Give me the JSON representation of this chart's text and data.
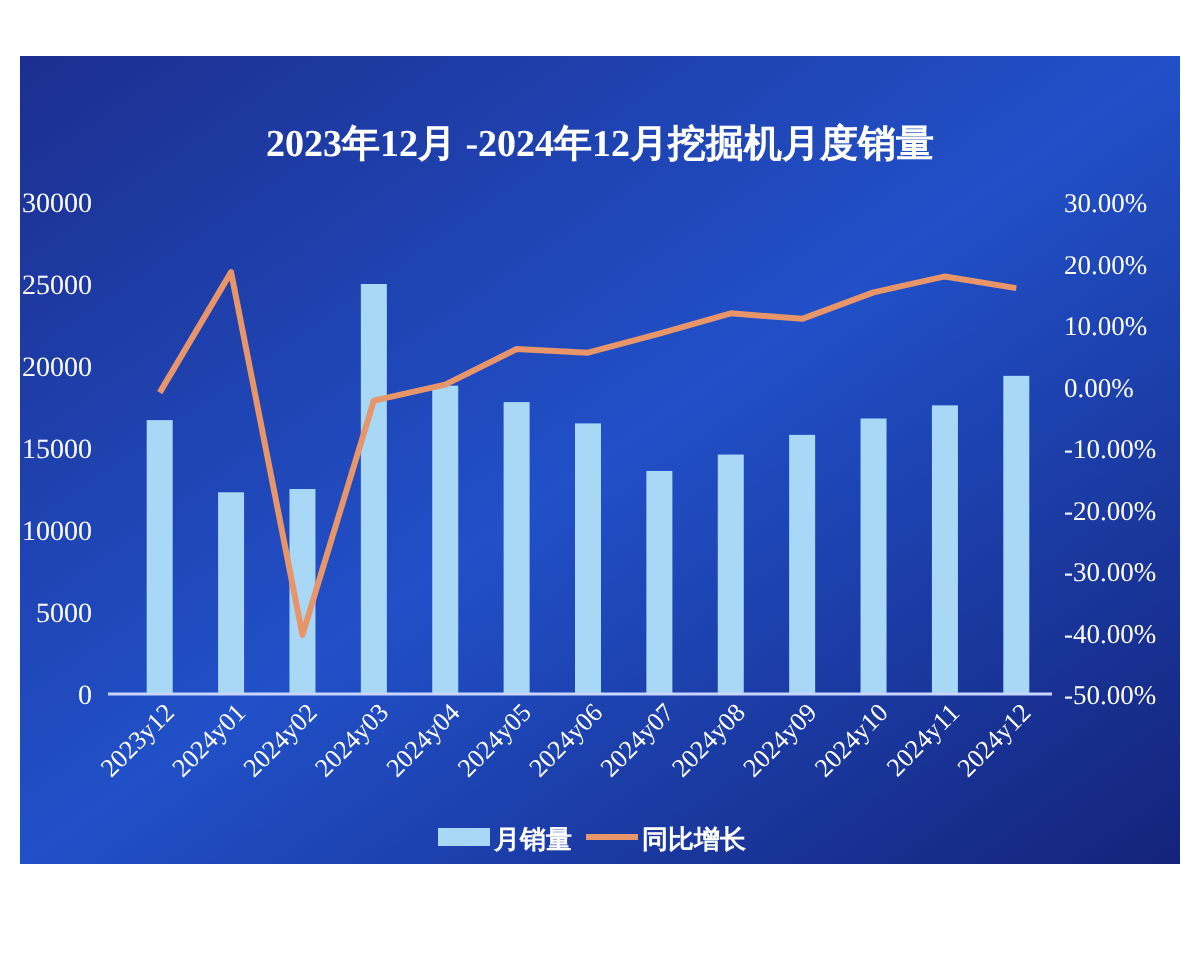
{
  "chart_data": {
    "type": "bar",
    "title": "2023年12月 -2024年12月挖掘机月度销量",
    "categories": [
      "2023y12",
      "2024y01",
      "2024y02",
      "2024y03",
      "2024y04",
      "2024y05",
      "2024y06",
      "2024y07",
      "2024y08",
      "2024y09",
      "2024y10",
      "2024y11",
      "2024y12"
    ],
    "series": [
      {
        "name": "月销量",
        "color": "#a8d8f5",
        "values": [
          16700,
          12300,
          12500,
          25000,
          18800,
          17800,
          16500,
          13600,
          14600,
          15800,
          16800,
          17600,
          19400
        ]
      },
      {
        "name": "同比增长",
        "type": "line",
        "axis": "y2",
        "color": "#e8956a",
        "values": [
          -1.0,
          18.6,
          -40.4,
          -2.3,
          0.3,
          6.1,
          5.5,
          8.6,
          11.9,
          11.0,
          15.3,
          17.9,
          16.0
        ]
      }
    ],
    "ylim": [
      0,
      30000
    ],
    "yticks": [
      0,
      5000,
      10000,
      15000,
      20000,
      25000,
      30000
    ],
    "y2lim": [
      -50,
      30
    ],
    "y2ticks": [
      {
        "value": -50,
        "label": "-50.00%"
      },
      {
        "value": -40,
        "label": "-40.00%"
      },
      {
        "value": -30,
        "label": "-30.00%"
      },
      {
        "value": -20,
        "label": "-20.00%"
      },
      {
        "value": -10,
        "label": "-10.00%"
      },
      {
        "value": 0,
        "label": "0.00%"
      },
      {
        "value": 10,
        "label": "10.00%"
      },
      {
        "value": 20,
        "label": "20.00%"
      },
      {
        "value": 30,
        "label": "30.00%"
      }
    ],
    "legend": "bottom",
    "grid": false,
    "marker": "none"
  }
}
